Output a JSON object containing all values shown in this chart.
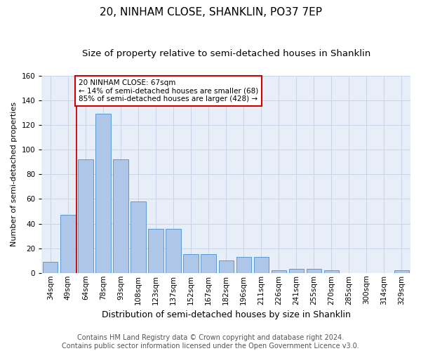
{
  "title": "20, NINHAM CLOSE, SHANKLIN, PO37 7EP",
  "subtitle": "Size of property relative to semi-detached houses in Shanklin",
  "xlabel": "Distribution of semi-detached houses by size in Shanklin",
  "ylabel": "Number of semi-detached properties",
  "footer1": "Contains HM Land Registry data © Crown copyright and database right 2024.",
  "footer2": "Contains public sector information licensed under the Open Government Licence v3.0.",
  "categories": [
    "34sqm",
    "49sqm",
    "64sqm",
    "78sqm",
    "93sqm",
    "108sqm",
    "123sqm",
    "137sqm",
    "152sqm",
    "167sqm",
    "182sqm",
    "196sqm",
    "211sqm",
    "226sqm",
    "241sqm",
    "255sqm",
    "270sqm",
    "285sqm",
    "300sqm",
    "314sqm",
    "329sqm"
  ],
  "values": [
    9,
    47,
    92,
    129,
    92,
    58,
    36,
    36,
    15,
    15,
    10,
    13,
    13,
    2,
    3,
    3,
    2,
    0,
    0,
    0,
    2
  ],
  "bar_color": "#aec6e8",
  "bar_edge_color": "#5a9ad4",
  "bar_width": 0.85,
  "redline_bin": 2,
  "annotation_line1": "20 NINHAM CLOSE: 67sqm",
  "annotation_line2": "← 14% of semi-detached houses are smaller (68)",
  "annotation_line3": "85% of semi-detached houses are larger (428) →",
  "annotation_box_color": "#ffffff",
  "annotation_edge_color": "#cc0000",
  "ylim": [
    0,
    160
  ],
  "yticks": [
    0,
    20,
    40,
    60,
    80,
    100,
    120,
    140,
    160
  ],
  "grid_color": "#c8d4e8",
  "bg_color": "#e8eef8",
  "title_fontsize": 11,
  "subtitle_fontsize": 9.5,
  "xlabel_fontsize": 9,
  "ylabel_fontsize": 8,
  "tick_fontsize": 7.5,
  "footer_fontsize": 7
}
